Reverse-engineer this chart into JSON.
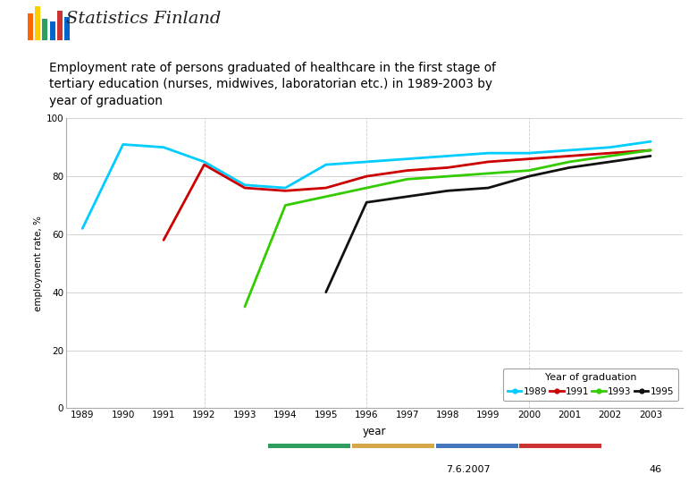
{
  "ylabel": "employment rate, %",
  "xlabel": "year",
  "ylim": [
    0,
    100
  ],
  "xlim": [
    1988.6,
    2003.8
  ],
  "yticks": [
    0,
    20,
    40,
    60,
    80,
    100
  ],
  "xticks": [
    1989,
    1990,
    1991,
    1992,
    1993,
    1994,
    1995,
    1996,
    1997,
    1998,
    1999,
    2000,
    2001,
    2002,
    2003
  ],
  "vgrid_dashed": [
    1992,
    1996,
    2000
  ],
  "series": [
    {
      "label": "1989",
      "color": "#00CCFF",
      "x": [
        1989,
        1990,
        1991,
        1992,
        1993,
        1994,
        1995,
        1996,
        1997,
        1998,
        1999,
        2000,
        2001,
        2002,
        2003
      ],
      "y": [
        62,
        91,
        90,
        85,
        77,
        76,
        84,
        85,
        86,
        87,
        88,
        88,
        89,
        90,
        92
      ]
    },
    {
      "label": "1991",
      "color": "#CC0000",
      "x": [
        1991,
        1992,
        1993,
        1994,
        1995,
        1996,
        1997,
        1998,
        1999,
        2000,
        2001,
        2002,
        2003
      ],
      "y": [
        58,
        84,
        76,
        75,
        76,
        80,
        82,
        83,
        85,
        86,
        87,
        88,
        89
      ]
    },
    {
      "label": "1993",
      "color": "#33CC00",
      "x": [
        1993,
        1994,
        1995,
        1996,
        1997,
        1998,
        1999,
        2000,
        2001,
        2002,
        2003
      ],
      "y": [
        35,
        70,
        73,
        76,
        79,
        80,
        81,
        82,
        85,
        87,
        89
      ]
    },
    {
      "label": "1995",
      "color": "#111111",
      "x": [
        1995,
        1996,
        1997,
        1998,
        1999,
        2000,
        2001,
        2002,
        2003
      ],
      "y": [
        40,
        71,
        73,
        75,
        76,
        80,
        83,
        85,
        87
      ]
    }
  ],
  "legend_title": "Year of graduation",
  "header_logo_text": "Statistics Finland",
  "chart_title_line1": "Employment rate of persons graduated of healthcare in the first stage of",
  "chart_title_line2": "tertiary education (nurses, midwives, laboratorian etc.) in 1989-2003 by",
  "chart_title_line3": "year of graduation",
  "footer_date": "7.6.2007",
  "footer_page": "46",
  "bg_color": "#FFFFFF",
  "footer_bar_colors": [
    "#2E9E5E",
    "#D4A847",
    "#4477BB",
    "#CC3333"
  ],
  "logo_bar_colors": [
    "#FF6600",
    "#FFCC00",
    "#339933",
    "#0066CC",
    "#FF3333",
    "#0066CC",
    "#FF6600",
    "#33AA33"
  ]
}
